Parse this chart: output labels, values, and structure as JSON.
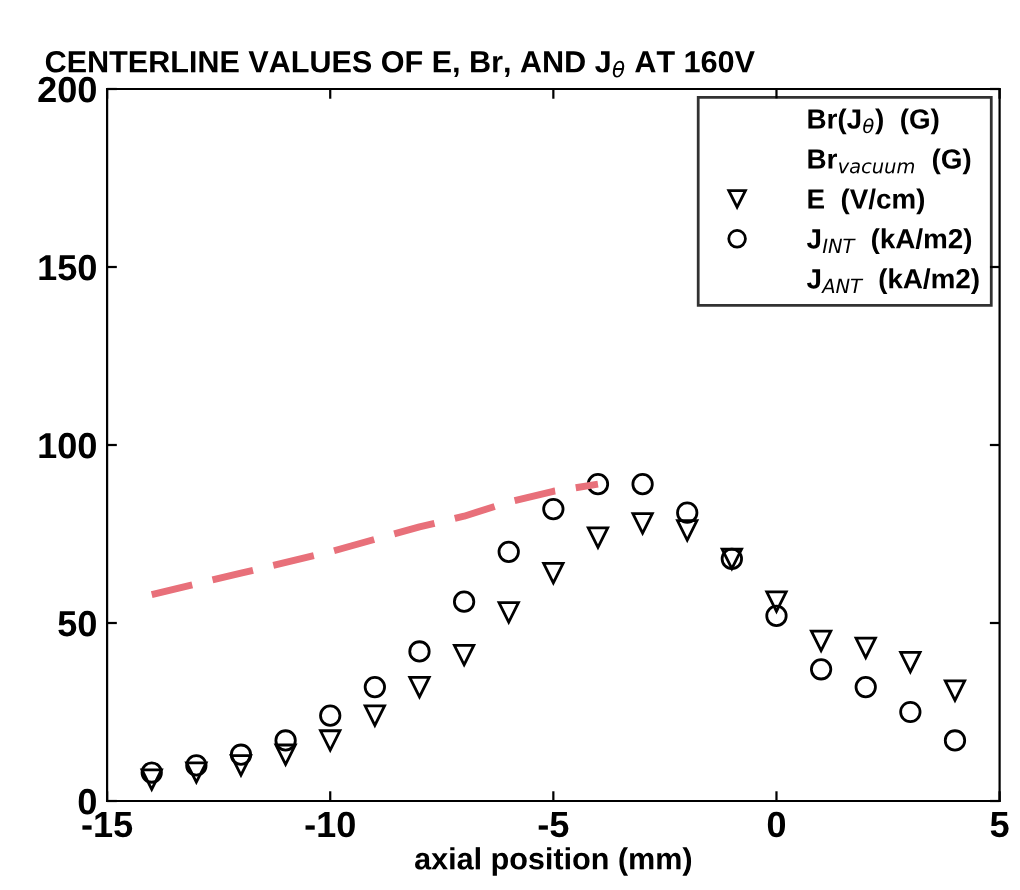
{
  "chart_data": {
    "type": "scatter",
    "title": "CENTERLINE VALUES OF E, Br, AND J$_{θ}$ AT 160V",
    "xlabel": "axial position (mm)",
    "x": [
      -14,
      -13,
      -12,
      -11,
      -10,
      -9,
      -8,
      -7,
      -6,
      -5,
      -4,
      -3,
      -2,
      -1,
      0,
      1,
      2,
      3,
      4
    ],
    "series": [
      {
        "name": "Br(J$_{θ}$)  (G)",
        "type": "line",
        "color": "#000000",
        "line_style": "solid",
        "marker": "none",
        "values": [
          null,
          null,
          null,
          null,
          null,
          null,
          null,
          null,
          null,
          null,
          null,
          null,
          null,
          null,
          null,
          null,
          null,
          null,
          null
        ]
      },
      {
        "name": "Br$_{vacuum}$  (G)",
        "type": "line",
        "color": "#000000",
        "line_style": "solid",
        "marker": "none",
        "values": [
          null,
          null,
          null,
          null,
          null,
          null,
          null,
          null,
          null,
          null,
          null,
          null,
          null,
          null,
          null,
          null,
          null,
          null,
          null
        ]
      },
      {
        "name": "E  (V/cm)",
        "color": "#000000",
        "marker": "triangle",
        "values": [
          6,
          8,
          10,
          13,
          17,
          24,
          32,
          41,
          53,
          64,
          74,
          78,
          76,
          68,
          56,
          45,
          43,
          39,
          31
        ]
      },
      {
        "name": "J$_{INT}$  (kA/m2)",
        "color": "#000000",
        "marker": "circle",
        "values": [
          8,
          10,
          13,
          17,
          24,
          32,
          42,
          56,
          70,
          82,
          89,
          89,
          81,
          68,
          52,
          37,
          32,
          25,
          17
        ]
      },
      {
        "name": "J$_{ANT}$  (kA/m2)",
        "type": "line",
        "color": "#000000",
        "line_style": "solid",
        "marker": "none",
        "values": [
          null,
          null,
          null,
          null,
          null,
          null,
          null,
          null,
          null,
          null,
          null,
          null,
          null,
          null,
          null,
          null,
          null,
          null,
          null
        ]
      },
      {
        "type": "line",
        "color": "#e8707a",
        "line_style": "dashed",
        "marker": "none",
        "x": [
          -14,
          -13,
          -12,
          -10,
          -8,
          -7,
          -6,
          -5,
          -4
        ],
        "values": [
          58,
          61,
          64,
          70,
          77,
          80,
          84,
          87,
          89
        ]
      }
    ],
    "xlim": [
      -15,
      5
    ],
    "ylim": [
      0,
      200
    ],
    "xticks": [
      -15,
      -10,
      -5,
      0,
      5
    ],
    "yticks": [
      0,
      50,
      100,
      150,
      200
    ],
    "grid": false,
    "legend": "top right"
  }
}
